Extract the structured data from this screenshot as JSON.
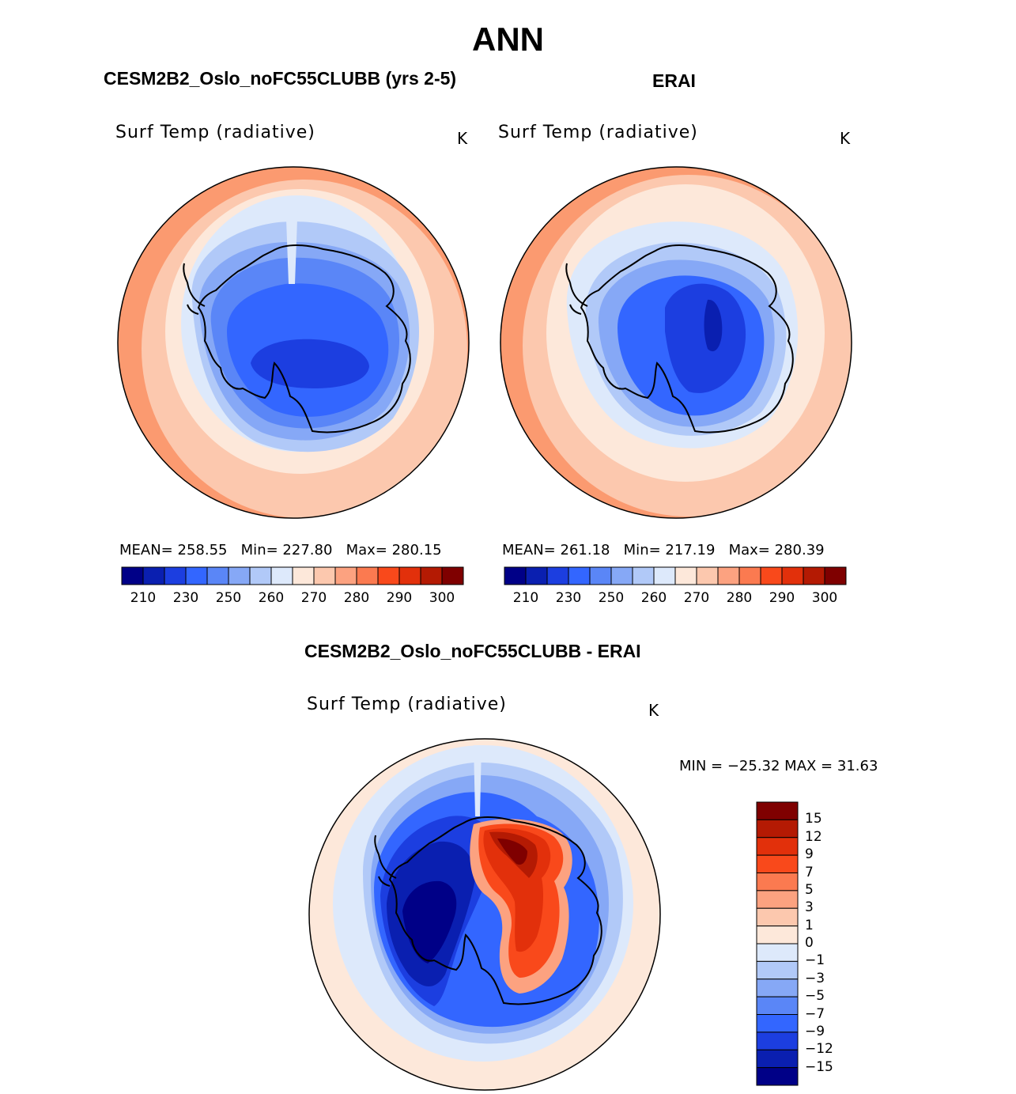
{
  "title": "ANN",
  "panels": [
    {
      "case_title": "CESM2B2_Oslo_noFC55CLUBB (yrs 2-5)",
      "variable": "Surf Temp (radiative)",
      "units": "K",
      "stats": {
        "mean_label": "MEAN=",
        "mean": "258.55",
        "min_label": "Min=",
        "min": "227.80",
        "max_label": "Max=",
        "max": "280.15"
      }
    },
    {
      "case_title": "ERAI",
      "variable": "Surf Temp (radiative)",
      "units": "K",
      "stats": {
        "mean_label": "MEAN=",
        "mean": "261.18",
        "min_label": "Min=",
        "min": "217.19",
        "max_label": "Max=",
        "max": "280.39"
      }
    }
  ],
  "diff": {
    "case_title": "CESM2B2_Oslo_noFC55CLUBB - ERAI",
    "variable": "Surf Temp (radiative)",
    "units": "K",
    "minmax": "MIN  =  −25.32 MAX  =   31.63"
  },
  "colorbar_abs": {
    "colors": [
      "#000087",
      "#0a1fb0",
      "#1c3ee0",
      "#3366ff",
      "#5a86f7",
      "#86a8f6",
      "#b1c9f8",
      "#dde9fb",
      "#fde8da",
      "#fcc8ae",
      "#fca280",
      "#fb7a50",
      "#f9491b",
      "#e2300b",
      "#b41a03",
      "#7f0000"
    ],
    "labels": [
      "210",
      "230",
      "250",
      "260",
      "270",
      "280",
      "290",
      "300"
    ]
  },
  "colorbar_diff": {
    "colors_top_to_bottom": [
      "#7f0000",
      "#b41a03",
      "#e2300b",
      "#f9491b",
      "#fb7a50",
      "#fca280",
      "#fcc8ae",
      "#fde8da",
      "#dde9fb",
      "#b1c9f8",
      "#86a8f6",
      "#5a86f7",
      "#3366ff",
      "#1c3ee0",
      "#0a1fb0",
      "#000087"
    ],
    "labels": [
      "15",
      "12",
      "9",
      "7",
      "5",
      "3",
      "1",
      "0",
      "−1",
      "−3",
      "−5",
      "−7",
      "−9",
      "−12",
      "−15"
    ]
  },
  "map_colors": {
    "warm_outer": "#fb9a70",
    "warm_mid": "#fcc8ae",
    "warm_light": "#fde8da",
    "cool_light": "#dde9fb",
    "cool_2": "#b1c9f8",
    "cool_3": "#86a8f6",
    "cool_4": "#5a86f7",
    "cool_5": "#3366ff",
    "cool_6": "#1c3ee0",
    "cool_7": "#0a1fb0",
    "cool_8": "#000087",
    "hot_1": "#fca280",
    "hot_2": "#f9491b",
    "hot_3": "#e2300b",
    "hot_4": "#b41a03",
    "hot_5": "#7f0000"
  }
}
